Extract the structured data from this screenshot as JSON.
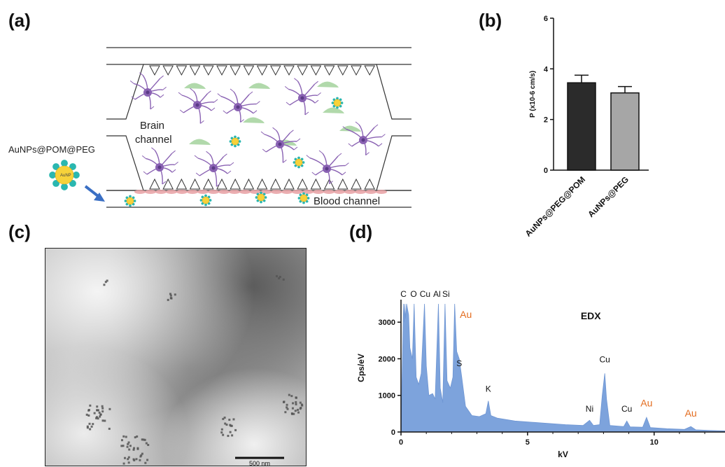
{
  "panels": {
    "a": "(a)",
    "b": "(b)",
    "c": "(c)",
    "d": "(d)"
  },
  "diagram": {
    "brain_label_1": "Brain",
    "brain_label_2": "channel",
    "blood_label": "Blood channel",
    "nanoparticle_label": "AuNPs@POM@PEG",
    "core_label": "AuNP",
    "colors": {
      "neuron": "#8a62b3",
      "neuron_body": "#5b3a86",
      "cell": "#a8d5a2",
      "nanoparticle": "#f7d23a",
      "ligand": "#2ab7b0",
      "blood_cell": "#e8a0a3",
      "arrow": "#3a6fc4"
    }
  },
  "micrograph": {
    "scale_bar": "500 nm"
  },
  "chart_data": [
    {
      "type": "bar",
      "panel": "b",
      "categories": [
        "AuNPs@PEG@POM",
        "AuNPs@PEG"
      ],
      "values": [
        3.45,
        3.05
      ],
      "errors": [
        0.3,
        0.25
      ],
      "ylabel": "P (x10-6 cm/s)",
      "ylim": [
        0,
        6
      ],
      "yticks": [
        "0",
        "2",
        "4",
        "6"
      ],
      "colors": [
        "#2b2b2b",
        "#a6a6a6"
      ]
    },
    {
      "type": "area",
      "panel": "d",
      "title": "EDX",
      "xlabel": "kV",
      "ylabel": "Cps/eV",
      "xlim": [
        0,
        12.8
      ],
      "ylim": [
        0,
        3500
      ],
      "xticks": [
        "0",
        "5",
        "10"
      ],
      "yticks": [
        "0",
        "1000",
        "2000",
        "3000"
      ],
      "color": "#7da3dc",
      "highlight_color": "#e36c1f",
      "series": [
        {
          "x": 0.0,
          "y": 0
        },
        {
          "x": 0.1,
          "y": 3500
        },
        {
          "x": 0.12,
          "y": 3000
        },
        {
          "x": 0.15,
          "y": 3500
        },
        {
          "x": 0.18,
          "y": 3100
        },
        {
          "x": 0.22,
          "y": 3500
        },
        {
          "x": 0.3,
          "y": 3200
        },
        {
          "x": 0.35,
          "y": 2300
        },
        {
          "x": 0.45,
          "y": 2000
        },
        {
          "x": 0.52,
          "y": 3500
        },
        {
          "x": 0.6,
          "y": 1500
        },
        {
          "x": 0.7,
          "y": 1300
        },
        {
          "x": 0.8,
          "y": 1600
        },
        {
          "x": 0.93,
          "y": 3500
        },
        {
          "x": 1.0,
          "y": 1800
        },
        {
          "x": 1.1,
          "y": 1000
        },
        {
          "x": 1.25,
          "y": 1050
        },
        {
          "x": 1.35,
          "y": 900
        },
        {
          "x": 1.48,
          "y": 3500
        },
        {
          "x": 1.55,
          "y": 1200
        },
        {
          "x": 1.65,
          "y": 800
        },
        {
          "x": 1.74,
          "y": 3500
        },
        {
          "x": 1.82,
          "y": 1400
        },
        {
          "x": 1.95,
          "y": 1200
        },
        {
          "x": 2.05,
          "y": 1500
        },
        {
          "x": 2.12,
          "y": 3500
        },
        {
          "x": 2.2,
          "y": 2200
        },
        {
          "x": 2.3,
          "y": 2000
        },
        {
          "x": 2.4,
          "y": 1500
        },
        {
          "x": 2.55,
          "y": 700
        },
        {
          "x": 2.8,
          "y": 450
        },
        {
          "x": 3.1,
          "y": 420
        },
        {
          "x": 3.35,
          "y": 500
        },
        {
          "x": 3.45,
          "y": 850
        },
        {
          "x": 3.55,
          "y": 450
        },
        {
          "x": 3.8,
          "y": 380
        },
        {
          "x": 4.5,
          "y": 300
        },
        {
          "x": 5.5,
          "y": 250
        },
        {
          "x": 6.5,
          "y": 200
        },
        {
          "x": 7.2,
          "y": 180
        },
        {
          "x": 7.45,
          "y": 320
        },
        {
          "x": 7.6,
          "y": 180
        },
        {
          "x": 7.85,
          "y": 200
        },
        {
          "x": 7.95,
          "y": 1000
        },
        {
          "x": 8.05,
          "y": 1600
        },
        {
          "x": 8.12,
          "y": 900
        },
        {
          "x": 8.25,
          "y": 180
        },
        {
          "x": 8.8,
          "y": 150
        },
        {
          "x": 8.92,
          "y": 300
        },
        {
          "x": 9.05,
          "y": 140
        },
        {
          "x": 9.55,
          "y": 130
        },
        {
          "x": 9.7,
          "y": 400
        },
        {
          "x": 9.85,
          "y": 120
        },
        {
          "x": 10.5,
          "y": 90
        },
        {
          "x": 11.2,
          "y": 70
        },
        {
          "x": 11.45,
          "y": 150
        },
        {
          "x": 11.65,
          "y": 60
        },
        {
          "x": 12.3,
          "y": 40
        },
        {
          "x": 12.8,
          "y": 30
        }
      ],
      "peaks": [
        {
          "label": "C",
          "x": 0.15,
          "y": 3500,
          "highlight": false
        },
        {
          "label": "O",
          "x": 0.5,
          "y": 3500,
          "highlight": false
        },
        {
          "label": "Cu",
          "x": 0.93,
          "y": 3500,
          "highlight": false
        },
        {
          "label": "Al",
          "x": 1.48,
          "y": 3500,
          "highlight": false
        },
        {
          "label": "Si",
          "x": 1.74,
          "y": 3500,
          "highlight": false
        },
        {
          "label": "Au",
          "x": 2.12,
          "y": 3150,
          "highlight": true
        },
        {
          "label": "S",
          "x": 2.3,
          "y": 1800,
          "highlight": false
        },
        {
          "label": "K",
          "x": 3.45,
          "y": 1100,
          "highlight": false
        },
        {
          "label": "Cu",
          "x": 8.05,
          "y": 1900,
          "highlight": false
        },
        {
          "label": "Ni",
          "x": 7.45,
          "y": 550,
          "highlight": false
        },
        {
          "label": "Cu",
          "x": 8.92,
          "y": 550,
          "highlight": false
        },
        {
          "label": "Au",
          "x": 9.7,
          "y": 700,
          "highlight": true
        },
        {
          "label": "Au",
          "x": 11.45,
          "y": 420,
          "highlight": true
        }
      ]
    }
  ]
}
